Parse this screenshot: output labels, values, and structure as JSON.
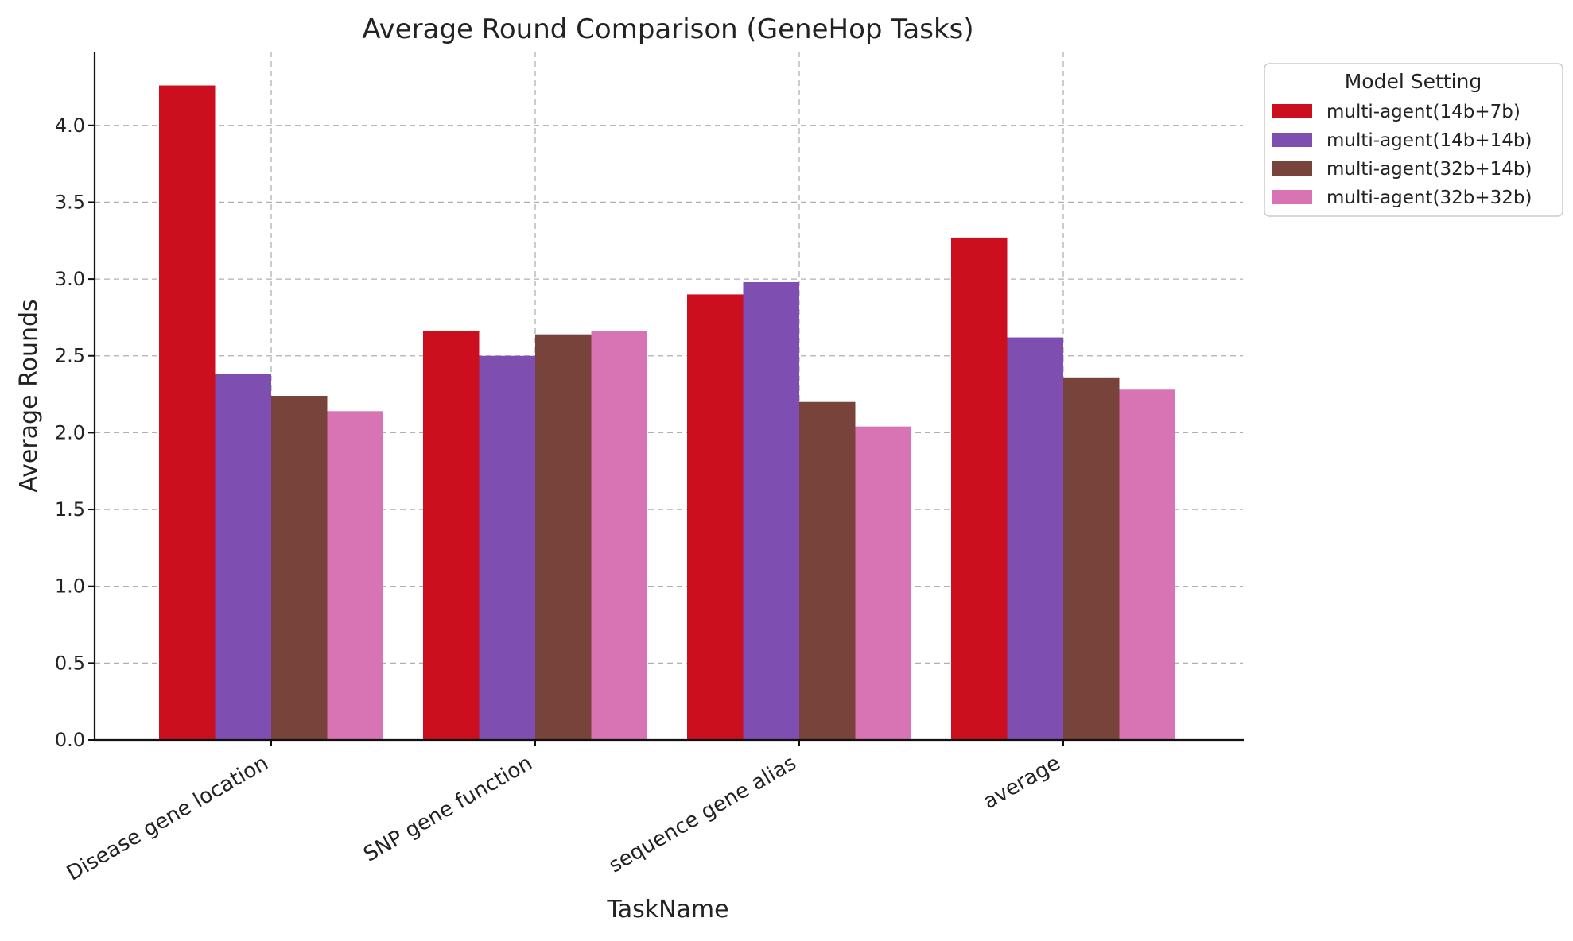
{
  "chart_data": {
    "type": "bar",
    "title": "Average Round Comparison (GeneHop Tasks)",
    "xlabel": "TaskName",
    "ylabel": "Average Rounds",
    "categories": [
      "Disease gene location",
      "SNP gene function",
      "sequence gene alias",
      "average"
    ],
    "series": [
      {
        "name": "multi-agent(14b+7b)",
        "color": "#cc0f1f",
        "values": [
          4.26,
          2.66,
          2.9,
          3.27
        ]
      },
      {
        "name": "multi-agent(14b+14b)",
        "color": "#7e4fb0",
        "values": [
          2.38,
          2.5,
          2.98,
          2.62
        ]
      },
      {
        "name": "multi-agent(32b+14b)",
        "color": "#77433a",
        "values": [
          2.24,
          2.64,
          2.2,
          2.36
        ]
      },
      {
        "name": "multi-agent(32b+32b)",
        "color": "#d874b4",
        "values": [
          2.14,
          2.66,
          2.04,
          2.28
        ]
      }
    ],
    "ylim": [
      0,
      4.48
    ],
    "yticks": [
      "0.0",
      "0.5",
      "1.0",
      "1.5",
      "2.0",
      "2.5",
      "3.0",
      "3.5",
      "4.0"
    ],
    "grid": true,
    "legend": {
      "title": "Model Setting",
      "placement": "outside upper right"
    }
  }
}
